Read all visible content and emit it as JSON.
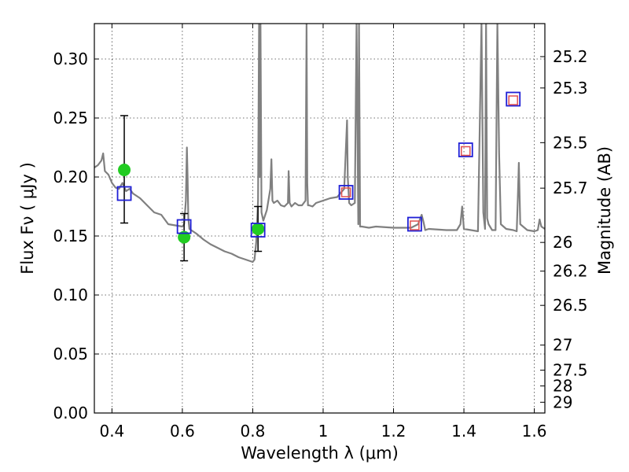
{
  "chart_data": {
    "type": "scatter",
    "xlabel": "Wavelength  λ (μm)",
    "ylabel": "Flux  Fν  ( μJy )",
    "y2label": "Magnitude (AB)",
    "xlim": [
      0.35,
      1.63
    ],
    "ylim": [
      0.0,
      0.33
    ],
    "grid": true,
    "x_ticks": [
      {
        "value": 0.4,
        "label": "0.4"
      },
      {
        "value": 0.6,
        "label": "0.6"
      },
      {
        "value": 0.8,
        "label": "0.8"
      },
      {
        "value": 1.0,
        "label": "1"
      },
      {
        "value": 1.2,
        "label": "1.2"
      },
      {
        "value": 1.4,
        "label": "1.4"
      },
      {
        "value": 1.6,
        "label": "1.6"
      }
    ],
    "y_ticks": [
      {
        "value": 0.0,
        "label": "0.00"
      },
      {
        "value": 0.05,
        "label": "0.05"
      },
      {
        "value": 0.1,
        "label": "0.10"
      },
      {
        "value": 0.15,
        "label": "0.15"
      },
      {
        "value": 0.2,
        "label": "0.20"
      },
      {
        "value": 0.25,
        "label": "0.25"
      },
      {
        "value": 0.3,
        "label": "0.30"
      }
    ],
    "y2_ticks": [
      {
        "value": 25.2,
        "label": "25.2"
      },
      {
        "value": 25.3,
        "label": "25.3"
      },
      {
        "value": 25.5,
        "label": "25.5"
      },
      {
        "value": 25.7,
        "label": "25.7"
      },
      {
        "value": 26,
        "label": "26"
      },
      {
        "value": 26.2,
        "label": "26.2"
      },
      {
        "value": 26.5,
        "label": "26.5"
      },
      {
        "value": 27,
        "label": "27"
      },
      {
        "value": 27.5,
        "label": "27.5"
      },
      {
        "value": 28,
        "label": "28"
      },
      {
        "value": 29,
        "label": "29"
      }
    ],
    "model_spectrum": {
      "color": "#808080",
      "x": [
        0.35,
        0.36,
        0.37,
        0.375,
        0.38,
        0.39,
        0.4,
        0.41,
        0.42,
        0.43,
        0.44,
        0.45,
        0.46,
        0.48,
        0.5,
        0.52,
        0.54,
        0.56,
        0.58,
        0.6,
        0.605,
        0.61,
        0.613,
        0.615,
        0.617,
        0.62,
        0.64,
        0.66,
        0.68,
        0.7,
        0.72,
        0.74,
        0.76,
        0.78,
        0.8,
        0.805,
        0.81,
        0.815,
        0.818,
        0.82,
        0.822,
        0.825,
        0.83,
        0.84,
        0.85,
        0.853,
        0.856,
        0.86,
        0.87,
        0.88,
        0.89,
        0.9,
        0.902,
        0.905,
        0.91,
        0.92,
        0.93,
        0.94,
        0.95,
        0.953,
        0.955,
        0.957,
        0.96,
        0.97,
        0.98,
        1.0,
        1.02,
        1.04,
        1.06,
        1.068,
        1.07,
        1.074,
        1.08,
        1.09,
        1.095,
        1.1,
        1.102,
        1.105,
        1.11,
        1.13,
        1.15,
        1.2,
        1.25,
        1.27,
        1.28,
        1.285,
        1.29,
        1.3,
        1.35,
        1.38,
        1.39,
        1.395,
        1.4,
        1.42,
        1.44,
        1.45,
        1.455,
        1.46,
        1.463,
        1.466,
        1.47,
        1.48,
        1.49,
        1.495,
        1.5,
        1.505,
        1.52,
        1.54,
        1.55,
        1.553,
        1.556,
        1.56,
        1.58,
        1.6,
        1.61,
        1.615,
        1.62,
        1.63
      ],
      "y": [
        0.208,
        0.21,
        0.214,
        0.22,
        0.205,
        0.202,
        0.195,
        0.191,
        0.19,
        0.195,
        0.188,
        0.19,
        0.186,
        0.182,
        0.176,
        0.17,
        0.168,
        0.16,
        0.159,
        0.158,
        0.16,
        0.18,
        0.225,
        0.2,
        0.165,
        0.156,
        0.152,
        0.147,
        0.143,
        0.14,
        0.137,
        0.135,
        0.132,
        0.13,
        0.128,
        0.13,
        0.145,
        0.18,
        0.33,
        0.2,
        0.33,
        0.17,
        0.163,
        0.172,
        0.19,
        0.215,
        0.18,
        0.178,
        0.18,
        0.176,
        0.175,
        0.178,
        0.205,
        0.178,
        0.175,
        0.178,
        0.176,
        0.176,
        0.18,
        0.33,
        0.195,
        0.176,
        0.176,
        0.175,
        0.178,
        0.18,
        0.182,
        0.183,
        0.19,
        0.248,
        0.2,
        0.178,
        0.176,
        0.178,
        0.33,
        0.16,
        0.33,
        0.158,
        0.158,
        0.157,
        0.158,
        0.157,
        0.157,
        0.16,
        0.168,
        0.162,
        0.155,
        0.156,
        0.155,
        0.155,
        0.16,
        0.175,
        0.156,
        0.155,
        0.154,
        0.33,
        0.17,
        0.156,
        0.33,
        0.165,
        0.16,
        0.155,
        0.155,
        0.33,
        0.22,
        0.16,
        0.156,
        0.155,
        0.154,
        0.18,
        0.212,
        0.16,
        0.155,
        0.154,
        0.155,
        0.164,
        0.158,
        0.156
      ]
    },
    "series": [
      {
        "marker": "circle",
        "color": "#22cc22",
        "points": [
          {
            "x": 0.435,
            "y": 0.206,
            "yerr_low": 0.161,
            "yerr_high": 0.252
          },
          {
            "x": 0.605,
            "y": 0.149,
            "yerr_low": 0.129,
            "yerr_high": 0.169
          },
          {
            "x": 0.815,
            "y": 0.156,
            "yerr_low": 0.137,
            "yerr_high": 0.175
          }
        ]
      },
      {
        "marker": "open-square",
        "color": "#1f1fd6",
        "points": [
          {
            "x": 0.435,
            "y": 0.186
          },
          {
            "x": 0.605,
            "y": 0.158
          },
          {
            "x": 0.815,
            "y": 0.155
          },
          {
            "x": 1.065,
            "y": 0.187
          },
          {
            "x": 1.26,
            "y": 0.16
          },
          {
            "x": 1.405,
            "y": 0.223
          },
          {
            "x": 1.54,
            "y": 0.266
          }
        ]
      },
      {
        "marker": "small-open-square",
        "color": "#e05050",
        "points": [
          {
            "x": 1.065,
            "y": 0.187
          },
          {
            "x": 1.26,
            "y": 0.159
          },
          {
            "x": 1.405,
            "y": 0.222
          },
          {
            "x": 1.54,
            "y": 0.265
          }
        ]
      }
    ]
  }
}
